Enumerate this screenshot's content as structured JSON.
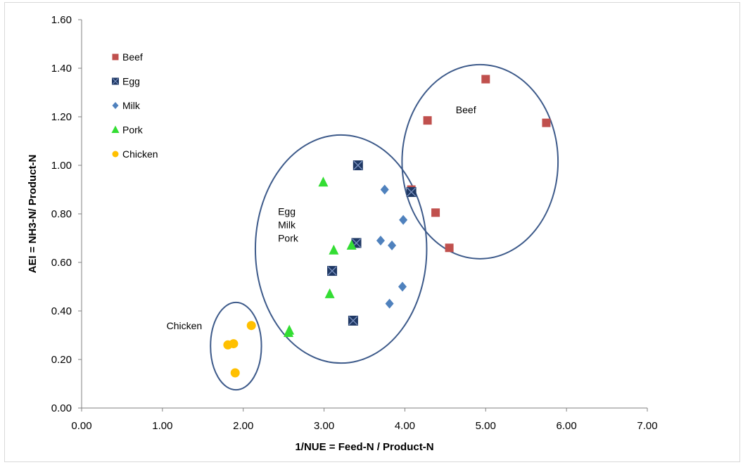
{
  "chart_data": {
    "type": "scatter",
    "title": "",
    "xlabel": "1/NUE = Feed-N / Product-N",
    "ylabel": "AEI = NH3-N/ Product-N",
    "xlim": [
      0,
      7
    ],
    "ylim": [
      0,
      1.6
    ],
    "x_ticks": [
      "0.00",
      "1.00",
      "2.00",
      "3.00",
      "4.00",
      "5.00",
      "6.00",
      "7.00"
    ],
    "y_ticks": [
      "0.00",
      "0.20",
      "0.40",
      "0.60",
      "0.80",
      "1.00",
      "1.20",
      "1.40",
      "1.60"
    ],
    "grid": false,
    "legend_position": "top-left",
    "series": [
      {
        "name": "Beef",
        "marker": "square",
        "color": "#c0504d",
        "points": [
          [
            4.08,
            0.9
          ],
          [
            4.28,
            1.185
          ],
          [
            4.38,
            0.805
          ],
          [
            4.55,
            0.66
          ],
          [
            5.0,
            1.355
          ],
          [
            5.75,
            1.175
          ]
        ]
      },
      {
        "name": "Egg",
        "marker": "x-square",
        "color": "#1f3864",
        "points": [
          [
            3.42,
            1.0
          ],
          [
            4.08,
            0.89
          ],
          [
            3.4,
            0.68
          ],
          [
            3.1,
            0.565
          ],
          [
            3.36,
            0.36
          ]
        ]
      },
      {
        "name": "Milk",
        "marker": "diamond",
        "color": "#4f81bd",
        "points": [
          [
            3.75,
            0.9
          ],
          [
            3.98,
            0.775
          ],
          [
            3.7,
            0.69
          ],
          [
            3.84,
            0.67
          ],
          [
            3.97,
            0.5
          ],
          [
            3.81,
            0.43
          ]
        ]
      },
      {
        "name": "Pork",
        "marker": "triangle",
        "color": "#33dd33",
        "points": [
          [
            2.99,
            0.93
          ],
          [
            3.12,
            0.65
          ],
          [
            3.34,
            0.67
          ],
          [
            3.07,
            0.47
          ],
          [
            2.57,
            0.32
          ],
          [
            2.56,
            0.31
          ]
        ]
      },
      {
        "name": "Chicken",
        "marker": "circle",
        "color": "#ffc000",
        "points": [
          [
            1.81,
            0.26
          ],
          [
            1.88,
            0.265
          ],
          [
            2.1,
            0.34
          ],
          [
            1.9,
            0.145
          ]
        ]
      }
    ],
    "annotations": [
      {
        "text": "Beef",
        "x": 4.63,
        "y": 1.215
      },
      {
        "text": "Egg",
        "x": 2.43,
        "y": 0.795
      },
      {
        "text": "Milk",
        "x": 2.43,
        "y": 0.74
      },
      {
        "text": "Pork",
        "x": 2.43,
        "y": 0.685
      },
      {
        "text": "Chicken",
        "x": 1.05,
        "y": 0.325
      }
    ],
    "ellipses": [
      {
        "group": "Beef",
        "cx": 4.93,
        "cy": 1.015,
        "rx": 0.965,
        "ry": 0.4
      },
      {
        "group": "Egg Milk Pork",
        "cx": 3.21,
        "cy": 0.655,
        "rx": 1.06,
        "ry": 0.47
      },
      {
        "group": "Chicken",
        "cx": 1.91,
        "cy": 0.255,
        "rx": 0.315,
        "ry": 0.18
      }
    ],
    "ellipse_color": "#3d5a8a"
  }
}
